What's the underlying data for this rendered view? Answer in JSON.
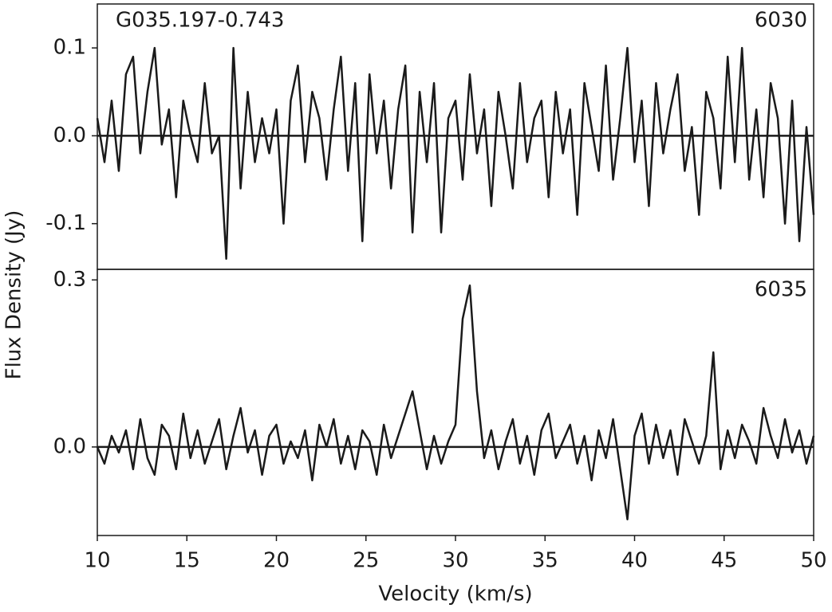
{
  "chart_data": [
    {
      "type": "line",
      "title": "G035.197-0.743",
      "label": "6030",
      "y_label": "Flux Density (Jy)",
      "color": "#1a1a1a",
      "x": [
        10,
        10.4,
        10.8,
        11.2,
        11.6,
        12,
        12.4,
        12.8,
        13.2,
        13.6,
        14,
        14.4,
        14.8,
        15.2,
        15.6,
        16,
        16.4,
        16.8,
        17.2,
        17.6,
        18,
        18.4,
        18.8,
        19.2,
        19.6,
        20,
        20.4,
        20.8,
        21.2,
        21.6,
        22,
        22.4,
        22.8,
        23.2,
        23.6,
        24,
        24.4,
        24.8,
        25.2,
        25.6,
        26,
        26.4,
        26.8,
        27.2,
        27.6,
        28,
        28.4,
        28.8,
        29.2,
        29.6,
        30,
        30.4,
        30.8,
        31.2,
        31.6,
        32,
        32.4,
        32.8,
        33.2,
        33.6,
        34,
        34.4,
        34.8,
        35.2,
        35.6,
        36,
        36.4,
        36.8,
        37.2,
        37.6,
        38,
        38.4,
        38.8,
        39.2,
        39.6,
        40,
        40.4,
        40.8,
        41.2,
        41.6,
        42,
        42.4,
        42.8,
        43.2,
        43.6,
        44,
        44.4,
        44.8,
        45.2,
        45.6,
        46,
        46.4,
        46.8,
        47.2,
        47.6,
        48,
        48.4,
        48.8,
        49.2,
        49.6,
        50
      ],
      "values": [
        0.02,
        -0.03,
        0.04,
        -0.04,
        0.07,
        0.09,
        -0.02,
        0.05,
        0.1,
        -0.01,
        0.03,
        -0.07,
        0.04,
        0.0,
        -0.03,
        0.06,
        -0.02,
        0.0,
        -0.14,
        0.1,
        -0.06,
        0.05,
        -0.03,
        0.02,
        -0.02,
        0.03,
        -0.1,
        0.04,
        0.08,
        -0.03,
        0.05,
        0.02,
        -0.05,
        0.03,
        0.09,
        -0.04,
        0.06,
        -0.12,
        0.07,
        -0.02,
        0.04,
        -0.06,
        0.03,
        0.08,
        -0.11,
        0.05,
        -0.03,
        0.06,
        -0.11,
        0.02,
        0.04,
        -0.05,
        0.07,
        -0.02,
        0.03,
        -0.08,
        0.05,
        0.0,
        -0.06,
        0.06,
        -0.03,
        0.02,
        0.04,
        -0.07,
        0.05,
        -0.02,
        0.03,
        -0.09,
        0.06,
        0.01,
        -0.04,
        0.08,
        -0.05,
        0.02,
        0.1,
        -0.03,
        0.04,
        -0.08,
        0.06,
        -0.02,
        0.03,
        0.07,
        -0.04,
        0.01,
        -0.09,
        0.05,
        0.02,
        -0.06,
        0.09,
        -0.03,
        0.1,
        -0.05,
        0.03,
        -0.07,
        0.06,
        0.02,
        -0.1,
        0.04,
        -0.12,
        0.01,
        -0.09
      ],
      "xlim": [
        10,
        50
      ],
      "ylim": [
        -0.152,
        0.15
      ],
      "yticks": [
        -0.1,
        {
          "value": 0,
          "label": "0.0"
        },
        0.1
      ]
    },
    {
      "type": "line",
      "label": "6035",
      "x_label": "Velocity (km/s)",
      "color": "#1a1a1a",
      "x": [
        10,
        10.4,
        10.8,
        11.2,
        11.6,
        12,
        12.4,
        12.8,
        13.2,
        13.6,
        14,
        14.4,
        14.8,
        15.2,
        15.6,
        16,
        16.4,
        16.8,
        17.2,
        17.6,
        18,
        18.4,
        18.8,
        19.2,
        19.6,
        20,
        20.4,
        20.8,
        21.2,
        21.6,
        22,
        22.4,
        22.8,
        23.2,
        23.6,
        24,
        24.4,
        24.8,
        25.2,
        25.6,
        26,
        26.4,
        26.8,
        27.2,
        27.6,
        28,
        28.4,
        28.8,
        29.2,
        29.6,
        30,
        30.4,
        30.8,
        31.2,
        31.6,
        32,
        32.4,
        32.8,
        33.2,
        33.6,
        34,
        34.4,
        34.8,
        35.2,
        35.6,
        36,
        36.4,
        36.8,
        37.2,
        37.6,
        38,
        38.4,
        38.8,
        39.2,
        39.6,
        40,
        40.4,
        40.8,
        41.2,
        41.6,
        42,
        42.4,
        42.8,
        43.2,
        43.6,
        44,
        44.4,
        44.8,
        45.2,
        45.6,
        46,
        46.4,
        46.8,
        47.2,
        47.6,
        48,
        48.4,
        48.8,
        49.2,
        49.6,
        50
      ],
      "values": [
        0.0,
        -0.03,
        0.02,
        -0.01,
        0.03,
        -0.04,
        0.05,
        -0.02,
        -0.05,
        0.04,
        0.02,
        -0.04,
        0.06,
        -0.02,
        0.03,
        -0.03,
        0.01,
        0.05,
        -0.04,
        0.02,
        0.07,
        -0.01,
        0.03,
        -0.05,
        0.02,
        0.04,
        -0.03,
        0.01,
        -0.02,
        0.03,
        -0.06,
        0.04,
        0.0,
        0.05,
        -0.03,
        0.02,
        -0.04,
        0.03,
        0.01,
        -0.05,
        0.04,
        -0.02,
        0.02,
        0.06,
        0.1,
        0.03,
        -0.04,
        0.02,
        -0.03,
        0.01,
        0.04,
        0.23,
        0.29,
        0.1,
        -0.02,
        0.03,
        -0.04,
        0.01,
        0.05,
        -0.03,
        0.02,
        -0.05,
        0.03,
        0.06,
        -0.02,
        0.01,
        0.04,
        -0.03,
        0.02,
        -0.06,
        0.03,
        -0.02,
        0.05,
        -0.04,
        -0.13,
        0.02,
        0.06,
        -0.03,
        0.04,
        -0.02,
        0.03,
        -0.05,
        0.05,
        0.01,
        -0.03,
        0.02,
        0.17,
        -0.04,
        0.03,
        -0.02,
        0.04,
        0.01,
        -0.03,
        0.07,
        0.02,
        -0.02,
        0.05,
        -0.01,
        0.03,
        -0.03,
        0.02
      ],
      "xlim": [
        10,
        50
      ],
      "ylim": [
        -0.159,
        0.319
      ],
      "yticks": [
        {
          "value": 0,
          "label": "0.0"
        },
        0.3
      ],
      "xticks": [
        10,
        15,
        20,
        25,
        30,
        35,
        40,
        45,
        50
      ]
    }
  ]
}
